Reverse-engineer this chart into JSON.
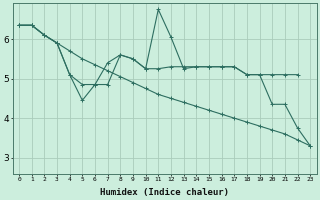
{
  "xlabel": "Humidex (Indice chaleur)",
  "background_color": "#cceedd",
  "grid_color": "#aaccbb",
  "line_color": "#2d6e60",
  "xlim": [
    -0.5,
    23.5
  ],
  "ylim": [
    2.6,
    6.9
  ],
  "xticks": [
    0,
    1,
    2,
    3,
    4,
    5,
    6,
    7,
    8,
    9,
    10,
    11,
    12,
    13,
    14,
    15,
    16,
    17,
    18,
    19,
    20,
    21,
    22,
    23
  ],
  "yticks": [
    3,
    4,
    5,
    6
  ],
  "line1_x": [
    0,
    1,
    2,
    3,
    4,
    5,
    6,
    7,
    8,
    9,
    10,
    11,
    12,
    13,
    14,
    15,
    16,
    17,
    18,
    19,
    20,
    21,
    22,
    23
  ],
  "line1_y": [
    6.35,
    6.35,
    6.1,
    5.9,
    5.7,
    5.5,
    5.35,
    5.2,
    5.05,
    4.9,
    4.75,
    4.6,
    4.5,
    4.4,
    4.3,
    4.2,
    4.1,
    4.0,
    3.9,
    3.8,
    3.7,
    3.6,
    3.45,
    3.3
  ],
  "line2_x": [
    0,
    1,
    2,
    3,
    4,
    5,
    6,
    7,
    8,
    9,
    10,
    11,
    12,
    13,
    14,
    15,
    16,
    17,
    18,
    19,
    20,
    21,
    22
  ],
  "line2_y": [
    6.35,
    6.35,
    6.1,
    5.9,
    5.1,
    4.85,
    4.85,
    5.4,
    5.6,
    5.5,
    5.25,
    5.25,
    5.3,
    5.3,
    5.3,
    5.3,
    5.3,
    5.3,
    5.1,
    5.1,
    5.1,
    5.1,
    5.1
  ],
  "line3_x": [
    0,
    1,
    2,
    3,
    4,
    5,
    6,
    7,
    8,
    9,
    10,
    11,
    12,
    13,
    14,
    15,
    16,
    17,
    18,
    19,
    20,
    21,
    22,
    23
  ],
  "line3_y": [
    6.35,
    6.35,
    6.1,
    5.9,
    5.1,
    4.45,
    4.85,
    4.85,
    5.6,
    5.5,
    5.25,
    6.75,
    6.05,
    5.25,
    5.3,
    5.3,
    5.3,
    5.3,
    5.1,
    5.1,
    4.35,
    4.35,
    3.75,
    3.3
  ]
}
